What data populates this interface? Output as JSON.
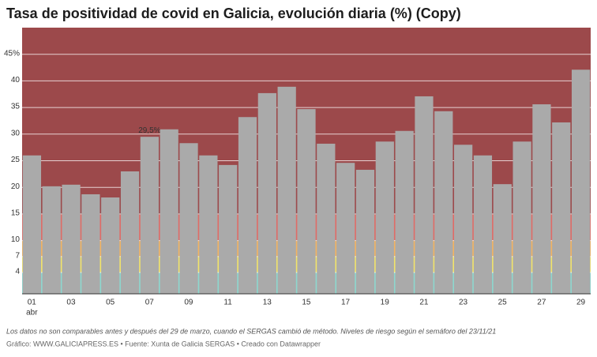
{
  "chart_data": {
    "type": "bar",
    "title": "Tasa de positividad de covid en Galicia, evolución diaria (%) (Copy)",
    "categories": [
      "01",
      null,
      "03",
      null,
      "05",
      null,
      "07",
      null,
      "09",
      null,
      "11",
      null,
      "13",
      null,
      "15",
      null,
      "17",
      null,
      "19",
      null,
      "21",
      null,
      "23",
      null,
      "25",
      null,
      "27",
      null,
      "29"
    ],
    "month_label": "abr",
    "values": [
      26.0,
      20.2,
      20.5,
      18.7,
      18.1,
      23.0,
      29.5,
      30.9,
      28.3,
      26.0,
      24.2,
      33.2,
      37.7,
      38.9,
      34.7,
      28.2,
      24.6,
      23.3,
      28.6,
      30.6,
      37.1,
      34.3,
      28.0,
      26.0,
      20.6,
      28.6,
      35.6,
      32.2,
      42.1
    ],
    "value_labels": [
      null,
      null,
      null,
      null,
      null,
      null,
      "29,5%",
      null,
      null,
      null,
      null,
      null,
      null,
      null,
      null,
      null,
      null,
      null,
      null,
      null,
      null,
      null,
      null,
      null,
      null,
      null,
      null,
      null,
      null
    ],
    "color": "#aaaaaa",
    "ylim": [
      0,
      50
    ],
    "yticks": [
      4,
      7,
      10,
      15,
      20,
      25,
      30,
      35,
      40,
      {
        "value": 45,
        "label": "45%"
      }
    ],
    "grid": true,
    "risk_bands": [
      {
        "from": 0,
        "to": 4,
        "color": "#8dd8cf"
      },
      {
        "from": 4,
        "to": 7,
        "color": "#f2e46a"
      },
      {
        "from": 7,
        "to": 10,
        "color": "#f3b360"
      },
      {
        "from": 10,
        "to": 15,
        "color": "#e06b66"
      },
      {
        "from": 15,
        "to": 50,
        "color": "#9c494b"
      }
    ],
    "notes": "Los datos no son comparables antes y después del 29 de marzo, cuando el SERGAS cambió de método. Niveles de riesgo según el semáforo del 23/11/21",
    "credits": "Gráfico: WWW.GALICIAPRESS.ES • Fuente: Xunta de Galicia SERGAS • Creado con Datawrapper"
  }
}
